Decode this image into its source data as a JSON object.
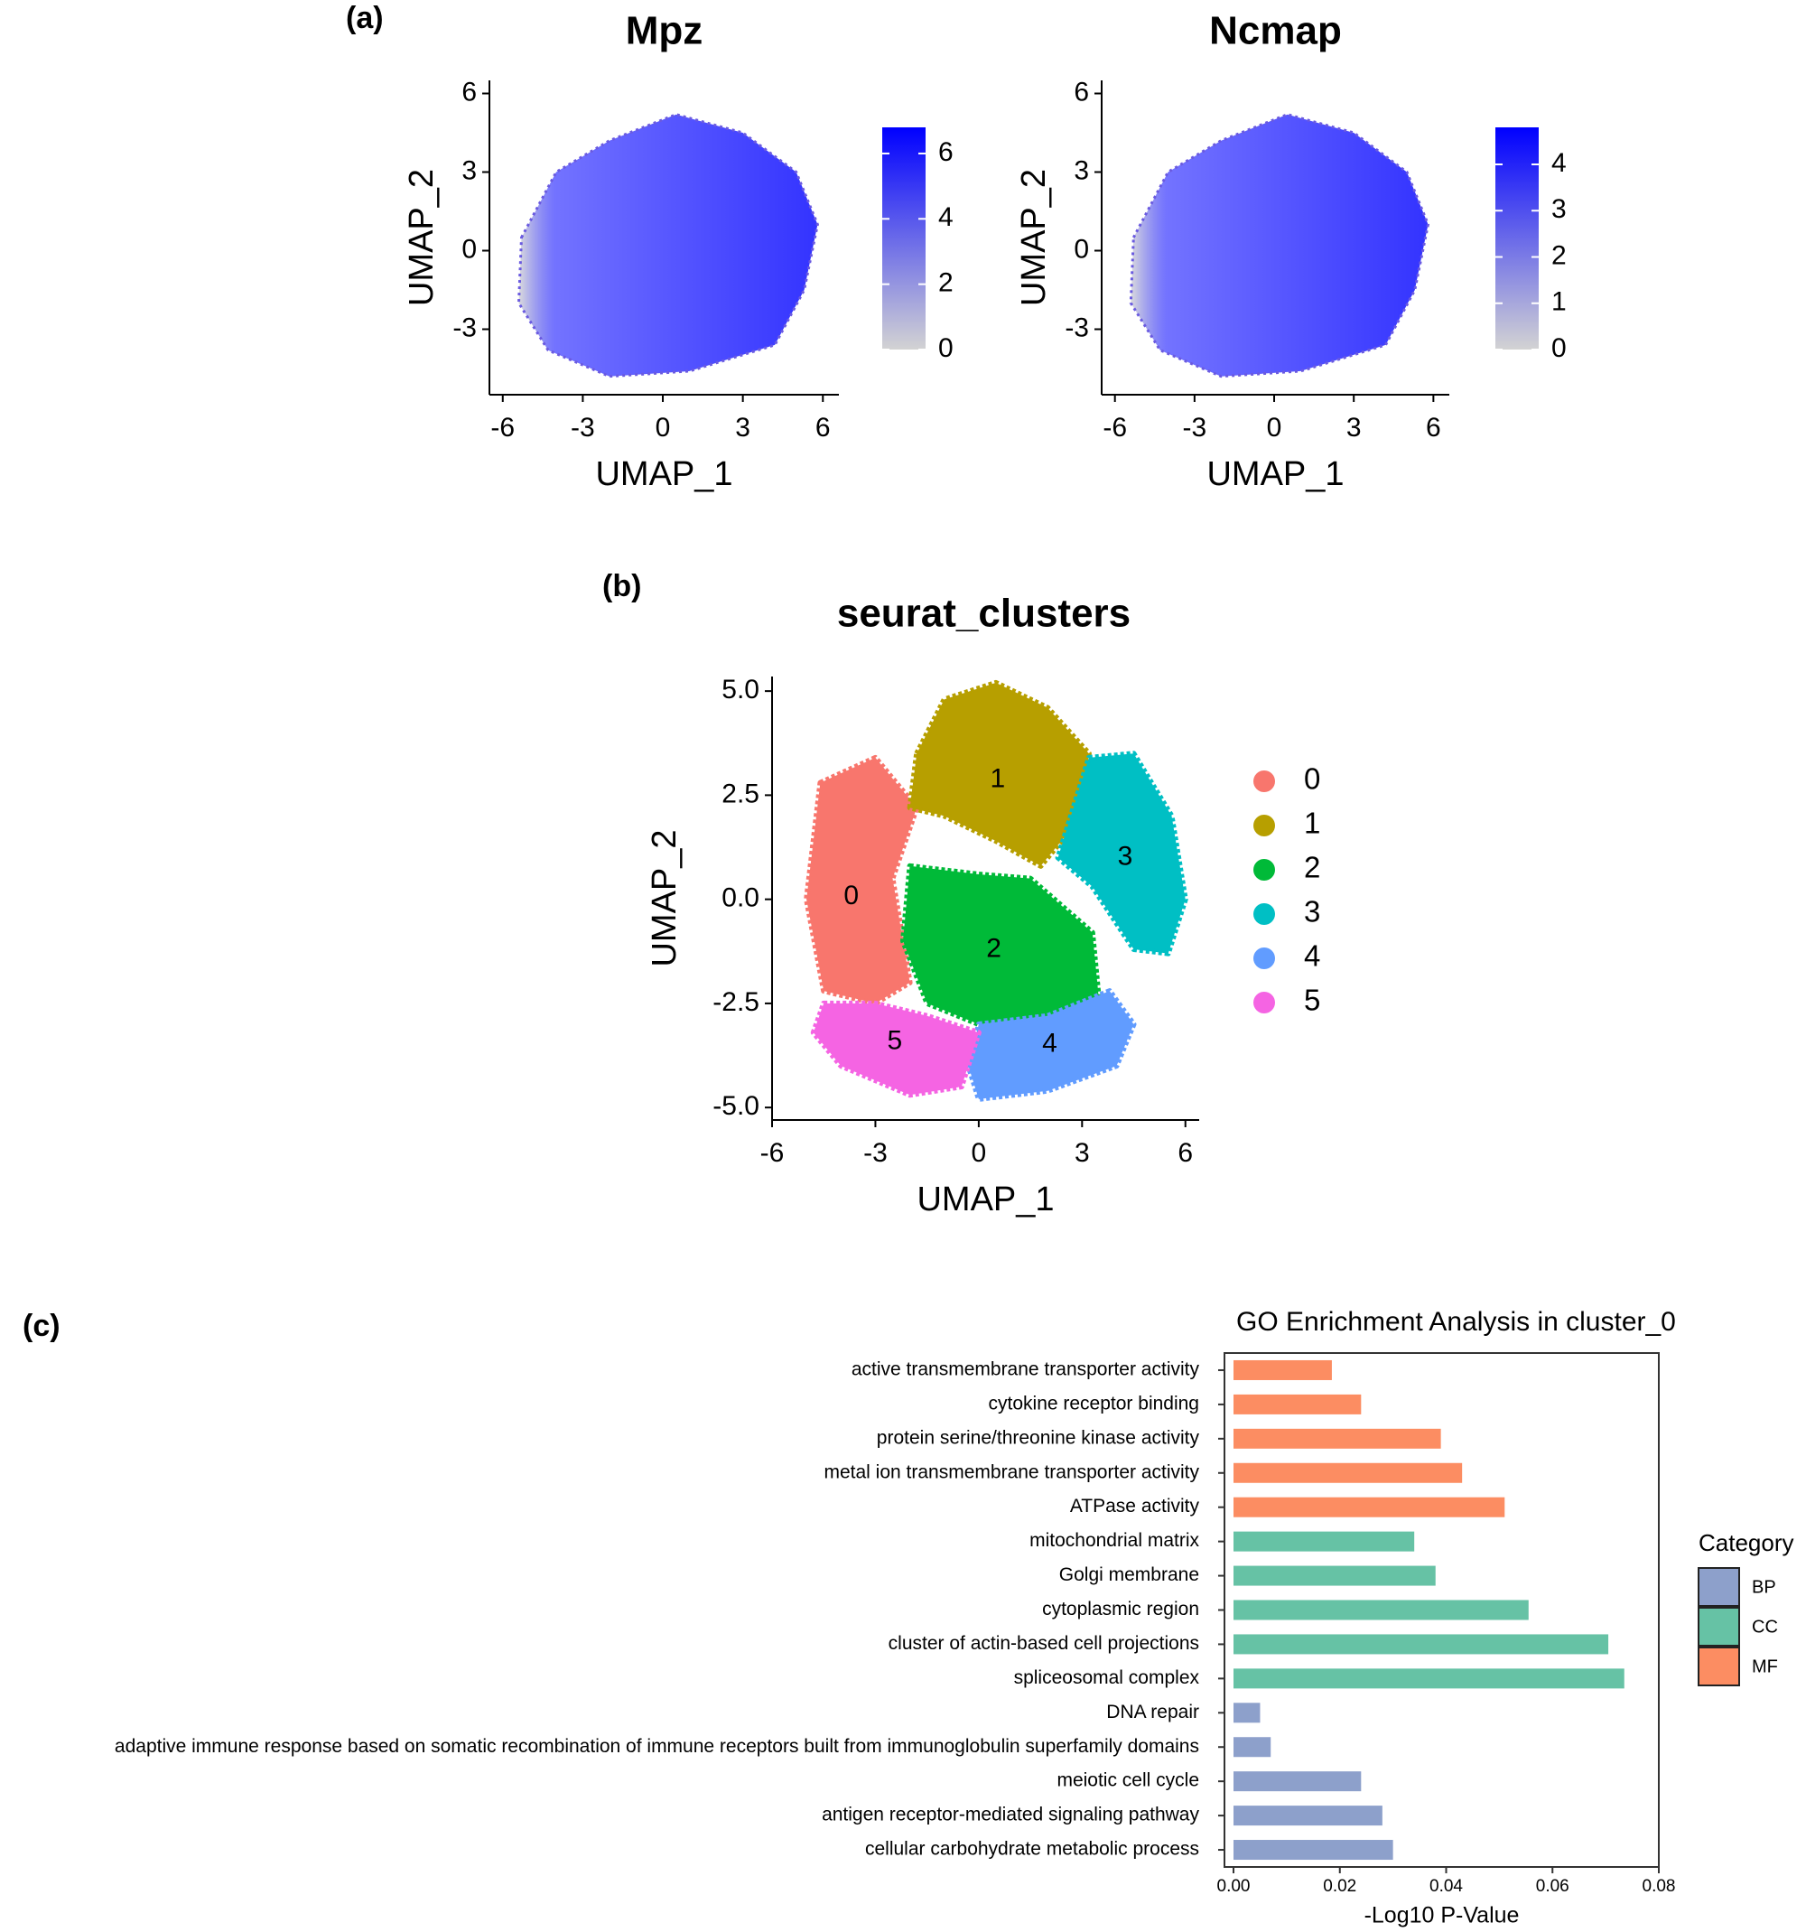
{
  "chart_data": [
    {
      "type": "feature",
      "panel": "(a)",
      "title": "Mpz",
      "xlabel": "UMAP_1",
      "ylabel": "UMAP_2",
      "xlim": [
        -6.5,
        6.6
      ],
      "ylim": [
        -5.5,
        6.5
      ],
      "xticks": [
        -6,
        -3,
        0,
        3,
        6
      ],
      "yticks": [
        -3,
        0,
        3,
        6
      ],
      "outline": {
        "x": [
          -5.3,
          -4,
          -2,
          0.5,
          3,
          5,
          5.8,
          5.3,
          4.2,
          1,
          -2,
          -4.3,
          -5.4
        ],
        "y": [
          0.5,
          3,
          4.2,
          5.2,
          4.5,
          3,
          1,
          -1.5,
          -3.6,
          -4.6,
          -4.8,
          -3.8,
          -2
        ]
      },
      "colorbar": {
        "lim": [
          0,
          6.8
        ],
        "ticks": [
          0,
          2,
          4,
          6
        ],
        "low_color": "#d3d3d3",
        "high_color": "#0000ff"
      }
    },
    {
      "type": "feature",
      "title": "Ncmap",
      "xlabel": "UMAP_1",
      "ylabel": "UMAP_2",
      "xlim": [
        -6.5,
        6.6
      ],
      "ylim": [
        -5.5,
        6.5
      ],
      "xticks": [
        -6,
        -3,
        0,
        3,
        6
      ],
      "yticks": [
        -3,
        0,
        3,
        6
      ],
      "outline": {
        "x": [
          -5.3,
          -4,
          -2,
          0.5,
          3,
          5,
          5.8,
          5.3,
          4.2,
          1,
          -2,
          -4.3,
          -5.4
        ],
        "y": [
          0.5,
          3,
          4.2,
          5.2,
          4.5,
          3,
          1,
          -1.5,
          -3.6,
          -4.6,
          -4.8,
          -3.8,
          -2
        ]
      },
      "colorbar": {
        "lim": [
          0,
          4.8
        ],
        "ticks": [
          0,
          1,
          2,
          3,
          4
        ],
        "low_color": "#d3d3d3",
        "high_color": "#0000ff"
      }
    },
    {
      "type": "cluster",
      "panel": "(b)",
      "title": "seurat_clusters",
      "xlabel": "UMAP_1",
      "ylabel": "UMAP_2",
      "xlim": [
        -6,
        6.4
      ],
      "ylim": [
        -5.3,
        5.35
      ],
      "xticks": [
        -6,
        -3,
        0,
        3,
        6
      ],
      "yticks": [
        {
          "value": 5,
          "label": "5.0"
        },
        {
          "value": 2.5,
          "label": "2.5"
        },
        {
          "value": 0,
          "label": "0.0"
        },
        {
          "value": -2.5,
          "label": "-2.5"
        },
        {
          "value": -5,
          "label": "-5.0"
        }
      ],
      "series": [
        {
          "name": "0",
          "color": "#F8766D",
          "label_x": -3.7,
          "label_y": 0.06,
          "x": [
            -4.6,
            -3,
            -1.8,
            -2.5,
            -2,
            -3,
            -4.5,
            -5
          ],
          "y": [
            2.8,
            3.4,
            2.2,
            0.5,
            -2,
            -2.5,
            -2.2,
            0
          ]
        },
        {
          "name": "1",
          "color": "#B79F00",
          "label_x": 0.55,
          "label_y": 2.87,
          "x": [
            -1.8,
            -1,
            0.5,
            2,
            3.2,
            3,
            1.8,
            0.5,
            -1,
            -2
          ],
          "y": [
            3.5,
            4.8,
            5.2,
            4.6,
            3.5,
            2,
            0.8,
            1.4,
            2,
            2.2
          ]
        },
        {
          "name": "2",
          "color": "#00BA38",
          "label_x": 0.44,
          "label_y": -1.21,
          "x": [
            -2,
            0,
            1.5,
            3.3,
            3.5,
            2,
            0,
            -1.5,
            -2.2
          ],
          "y": [
            0.8,
            0.6,
            0.5,
            -0.8,
            -2.5,
            -2.8,
            -3,
            -2.5,
            -1
          ]
        },
        {
          "name": "3",
          "color": "#00BFC4",
          "label_x": 4.25,
          "label_y": 1.0,
          "x": [
            3.2,
            4.5,
            5.6,
            6,
            5.5,
            4.5,
            3.3,
            2.3
          ],
          "y": [
            3.4,
            3.5,
            2,
            0,
            -1.3,
            -1.2,
            0.3,
            1
          ]
        },
        {
          "name": "4",
          "color": "#619CFF",
          "label_x": 2.06,
          "label_y": -3.49,
          "x": [
            0,
            2,
            3.8,
            4.5,
            4,
            2,
            0,
            -0.3
          ],
          "y": [
            -3,
            -2.8,
            -2.2,
            -3,
            -4,
            -4.6,
            -4.8,
            -4
          ]
        },
        {
          "name": "5",
          "color": "#F564E3",
          "label_x": -2.44,
          "label_y": -3.43,
          "x": [
            -4.5,
            -3,
            -1.5,
            0,
            -0.5,
            -2,
            -4,
            -4.8
          ],
          "y": [
            -2.5,
            -2.5,
            -2.8,
            -3.2,
            -4.5,
            -4.7,
            -4,
            -3.2
          ]
        }
      ]
    },
    {
      "type": "hbar",
      "panel": "(c)",
      "title": "GO Enrichment Analysis in cluster_0",
      "xlabel": "-Log10 P-Value",
      "legend_title": "Category",
      "xlim": [
        -0.0017,
        0.08
      ],
      "xticks": [
        {
          "value": 0,
          "label": "0.00"
        },
        {
          "value": 0.02,
          "label": "0.02"
        },
        {
          "value": 0.04,
          "label": "0.04"
        },
        {
          "value": 0.06,
          "label": "0.06"
        },
        {
          "value": 0.08,
          "label": "0.08"
        }
      ],
      "categories": [
        "active transmembrane transporter activity",
        "cytokine receptor binding",
        "protein serine/threonine kinase activity",
        "metal ion transmembrane transporter activity",
        "ATPase activity",
        "mitochondrial matrix",
        "Golgi membrane",
        "cytoplasmic region",
        "cluster of actin-based cell projections",
        "spliceosomal complex",
        "DNA repair",
        "adaptive immune response based on somatic recombination of immune receptors built from immunoglobulin superfamily domains",
        "meiotic cell cycle",
        "antigen receptor-mediated signaling pathway",
        "cellular carbohydrate metabolic process"
      ],
      "series": [
        {
          "name": "BP",
          "color": "#8DA0CB",
          "values": [
            null,
            null,
            null,
            null,
            null,
            null,
            null,
            null,
            null,
            null,
            0.005,
            0.007,
            0.024,
            0.028,
            0.03
          ]
        },
        {
          "name": "CC",
          "color": "#66C2A5",
          "values": [
            null,
            null,
            null,
            null,
            null,
            0.034,
            0.038,
            0.0555,
            0.0705,
            0.0735,
            null,
            null,
            null,
            null,
            null
          ]
        },
        {
          "name": "MF",
          "color": "#FC8D62",
          "values": [
            0.0185,
            0.024,
            0.039,
            0.043,
            0.051,
            null,
            null,
            null,
            null,
            null,
            null,
            null,
            null,
            null,
            null
          ]
        }
      ]
    }
  ]
}
